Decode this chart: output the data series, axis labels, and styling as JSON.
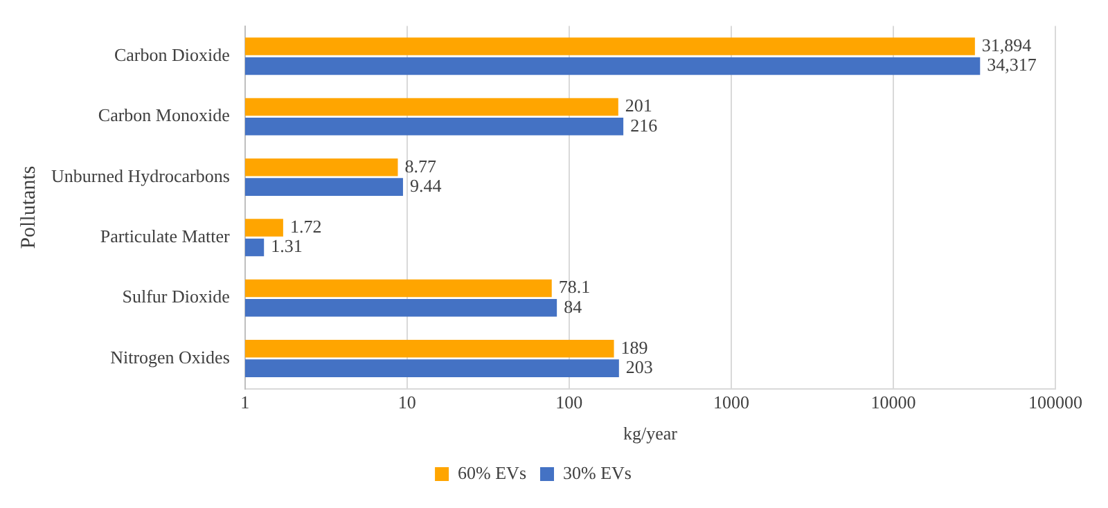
{
  "chart_data": {
    "type": "bar",
    "orientation": "horizontal",
    "xlabel": "kg/year",
    "ylabel": "Pollutants",
    "categories": [
      "Carbon Dioxide",
      "Carbon Monoxide",
      "Unburned Hydrocarbons",
      "Particulate Matter",
      "Sulfur Dioxide",
      "Nitrogen Oxides"
    ],
    "series": [
      {
        "name": "60% EVs",
        "color": "#ffa500",
        "values": [
          31894,
          201,
          8.77,
          1.72,
          78.1,
          189
        ],
        "value_labels": [
          "31,894",
          "201",
          "8.77",
          "1.72",
          "78.1",
          "189"
        ]
      },
      {
        "name": "30% EVs",
        "color": "#4472c4",
        "values": [
          34317,
          216,
          9.44,
          1.31,
          84,
          203
        ],
        "value_labels": [
          "34,317",
          "216",
          "9.44",
          "1.31",
          "84",
          "203"
        ]
      }
    ],
    "log": "x",
    "xlim": [
      1,
      100000
    ],
    "xticks": [
      1,
      10,
      100,
      1000,
      10000,
      100000
    ],
    "grid": "x",
    "legend": "bottom"
  }
}
